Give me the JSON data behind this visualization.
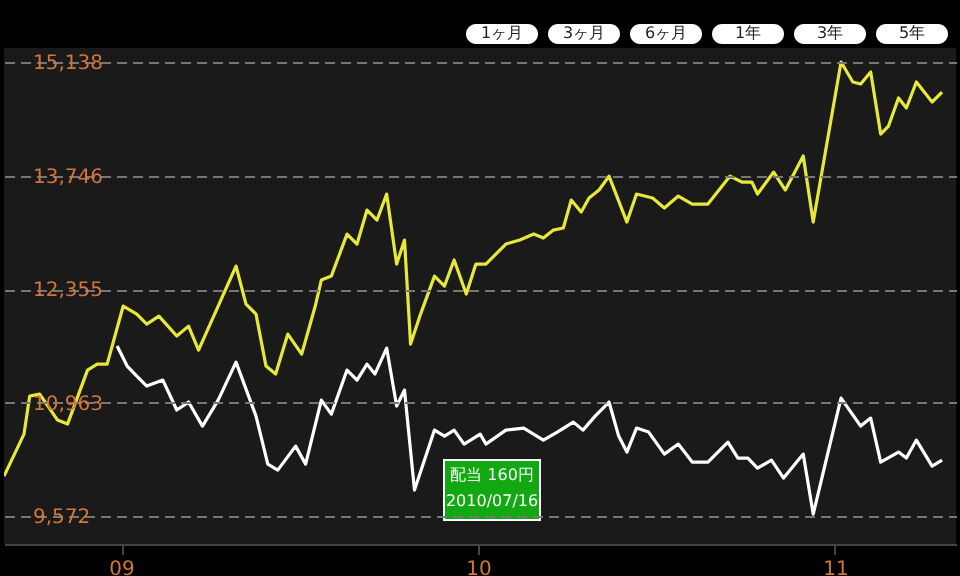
{
  "chart_data": {
    "type": "line",
    "x": [
      2008.672,
      2008.728,
      2008.744,
      2008.772,
      2008.822,
      2008.85,
      2008.906,
      2008.933,
      2008.961,
      2009.006,
      2009.044,
      2009.072,
      2009.106,
      2009.156,
      2009.189,
      2009.217,
      2009.272,
      2009.322,
      2009.35,
      2009.378,
      2009.406,
      2009.433,
      2009.467,
      2009.506,
      2009.544,
      2009.561,
      2009.589,
      2009.633,
      2009.661,
      2009.689,
      2009.717,
      2009.744,
      2009.772,
      2009.794,
      2009.811,
      2009.839,
      2009.878,
      2009.906,
      2009.933,
      2009.967,
      2009.994,
      2010.022,
      2010.078,
      2010.117,
      2010.156,
      2010.183,
      2010.211,
      2010.239,
      2010.261,
      2010.289,
      2010.311,
      2010.339,
      2010.367,
      2010.417,
      2010.444,
      2010.489,
      2010.522,
      2010.561,
      2010.6,
      2010.644,
      2010.706,
      2010.739,
      2010.767,
      2010.783,
      2010.828,
      2010.861,
      2010.911,
      2010.939,
      2011.017,
      2011.05,
      2011.072,
      2011.1,
      2011.128,
      2011.15,
      2011.178,
      2011.2,
      2011.228,
      2011.272,
      2011.3
    ],
    "series": [
      {
        "color": "#e8e83a",
        "values": [
          10062,
          10577,
          11043,
          11068,
          10749,
          10700,
          11362,
          11435,
          11435,
          12147,
          12048,
          11926,
          12024,
          11779,
          11901,
          11607,
          12147,
          12637,
          12171,
          12048,
          11411,
          11313,
          11803,
          11558,
          12147,
          12465,
          12514,
          13029,
          12907,
          13324,
          13201,
          13520,
          12661,
          12956,
          11681,
          12048,
          12514,
          12392,
          12711,
          12294,
          12661,
          12661,
          12907,
          12956,
          13029,
          12980,
          13078,
          13103,
          13446,
          13299,
          13471,
          13569,
          13740,
          13176,
          13520,
          13471,
          13348,
          13495,
          13397,
          13397,
          13740,
          13667,
          13667,
          13520,
          13789,
          13569,
          13986,
          13176,
          15138,
          14893,
          14868,
          15015,
          14255,
          14353,
          14697,
          14574,
          14893,
          14648,
          14770
        ]
      },
      {
        "color": "#ffffff",
        "x": [
          2008.989,
          2009.017,
          2009.044,
          2009.072,
          2009.117,
          2009.156,
          2009.189,
          2009.228,
          2009.272,
          2009.322,
          2009.378,
          2009.411,
          2009.439,
          2009.489,
          2009.517,
          2009.561,
          2009.589,
          2009.633,
          2009.661,
          2009.689,
          2009.711,
          2009.744,
          2009.772,
          2009.794,
          2009.822,
          2009.878,
          2009.906,
          2009.933,
          2009.961,
          2010.006,
          2010.022,
          2010.078,
          2010.128,
          2010.183,
          2010.222,
          2010.267,
          2010.294,
          2010.328,
          2010.367,
          2010.394,
          2010.417,
          2010.444,
          2010.478,
          2010.522,
          2010.561,
          2010.6,
          2010.644,
          2010.7,
          2010.728,
          2010.756,
          2010.783,
          2010.822,
          2010.856,
          2010.911,
          2010.939,
          2011.017,
          2011.072,
          2011.1,
          2011.128,
          2011.178,
          2011.2,
          2011.228,
          2011.272,
          2011.3
        ],
        "values": [
          11656,
          11411,
          11288,
          11166,
          11239,
          10872,
          10970,
          10675,
          10994,
          11460,
          10798,
          10209,
          10136,
          10430,
          10209,
          10994,
          10822,
          11362,
          11239,
          11435,
          11313,
          11632,
          10921,
          11117,
          9891,
          10626,
          10553,
          10626,
          10455,
          10577,
          10455,
          10626,
          10651,
          10504,
          10602,
          10724,
          10626,
          10798,
          10970,
          10553,
          10357,
          10651,
          10602,
          10332,
          10455,
          10234,
          10234,
          10479,
          10283,
          10283,
          10160,
          10259,
          10038,
          10332,
          9596,
          11019,
          10675,
          10773,
          10234,
          10357,
          10283,
          10504,
          10185,
          10259
        ]
      }
    ],
    "xlim": [
      2008.672,
      2011.339
    ],
    "xticks": [
      {
        "value": 2009,
        "label": "09"
      },
      {
        "value": 2010,
        "label": "10"
      },
      {
        "value": 2011,
        "label": "11"
      }
    ],
    "ylim": [
      9230,
      15310
    ],
    "yticks": [
      {
        "value": 9572,
        "label": "9,572"
      },
      {
        "value": 10963,
        "label": "10,963"
      },
      {
        "value": 12355,
        "label": "12,355"
      },
      {
        "value": 13746,
        "label": "13,746"
      },
      {
        "value": 15138,
        "label": "15,138"
      }
    ],
    "grid": "y",
    "line_style": "solid",
    "annotations": [
      "1ヶ月",
      "3ヶ月",
      "6ヶ月",
      "1年",
      "3年",
      "5年",
      "配当 160円",
      "2010/07/16"
    ]
  }
}
